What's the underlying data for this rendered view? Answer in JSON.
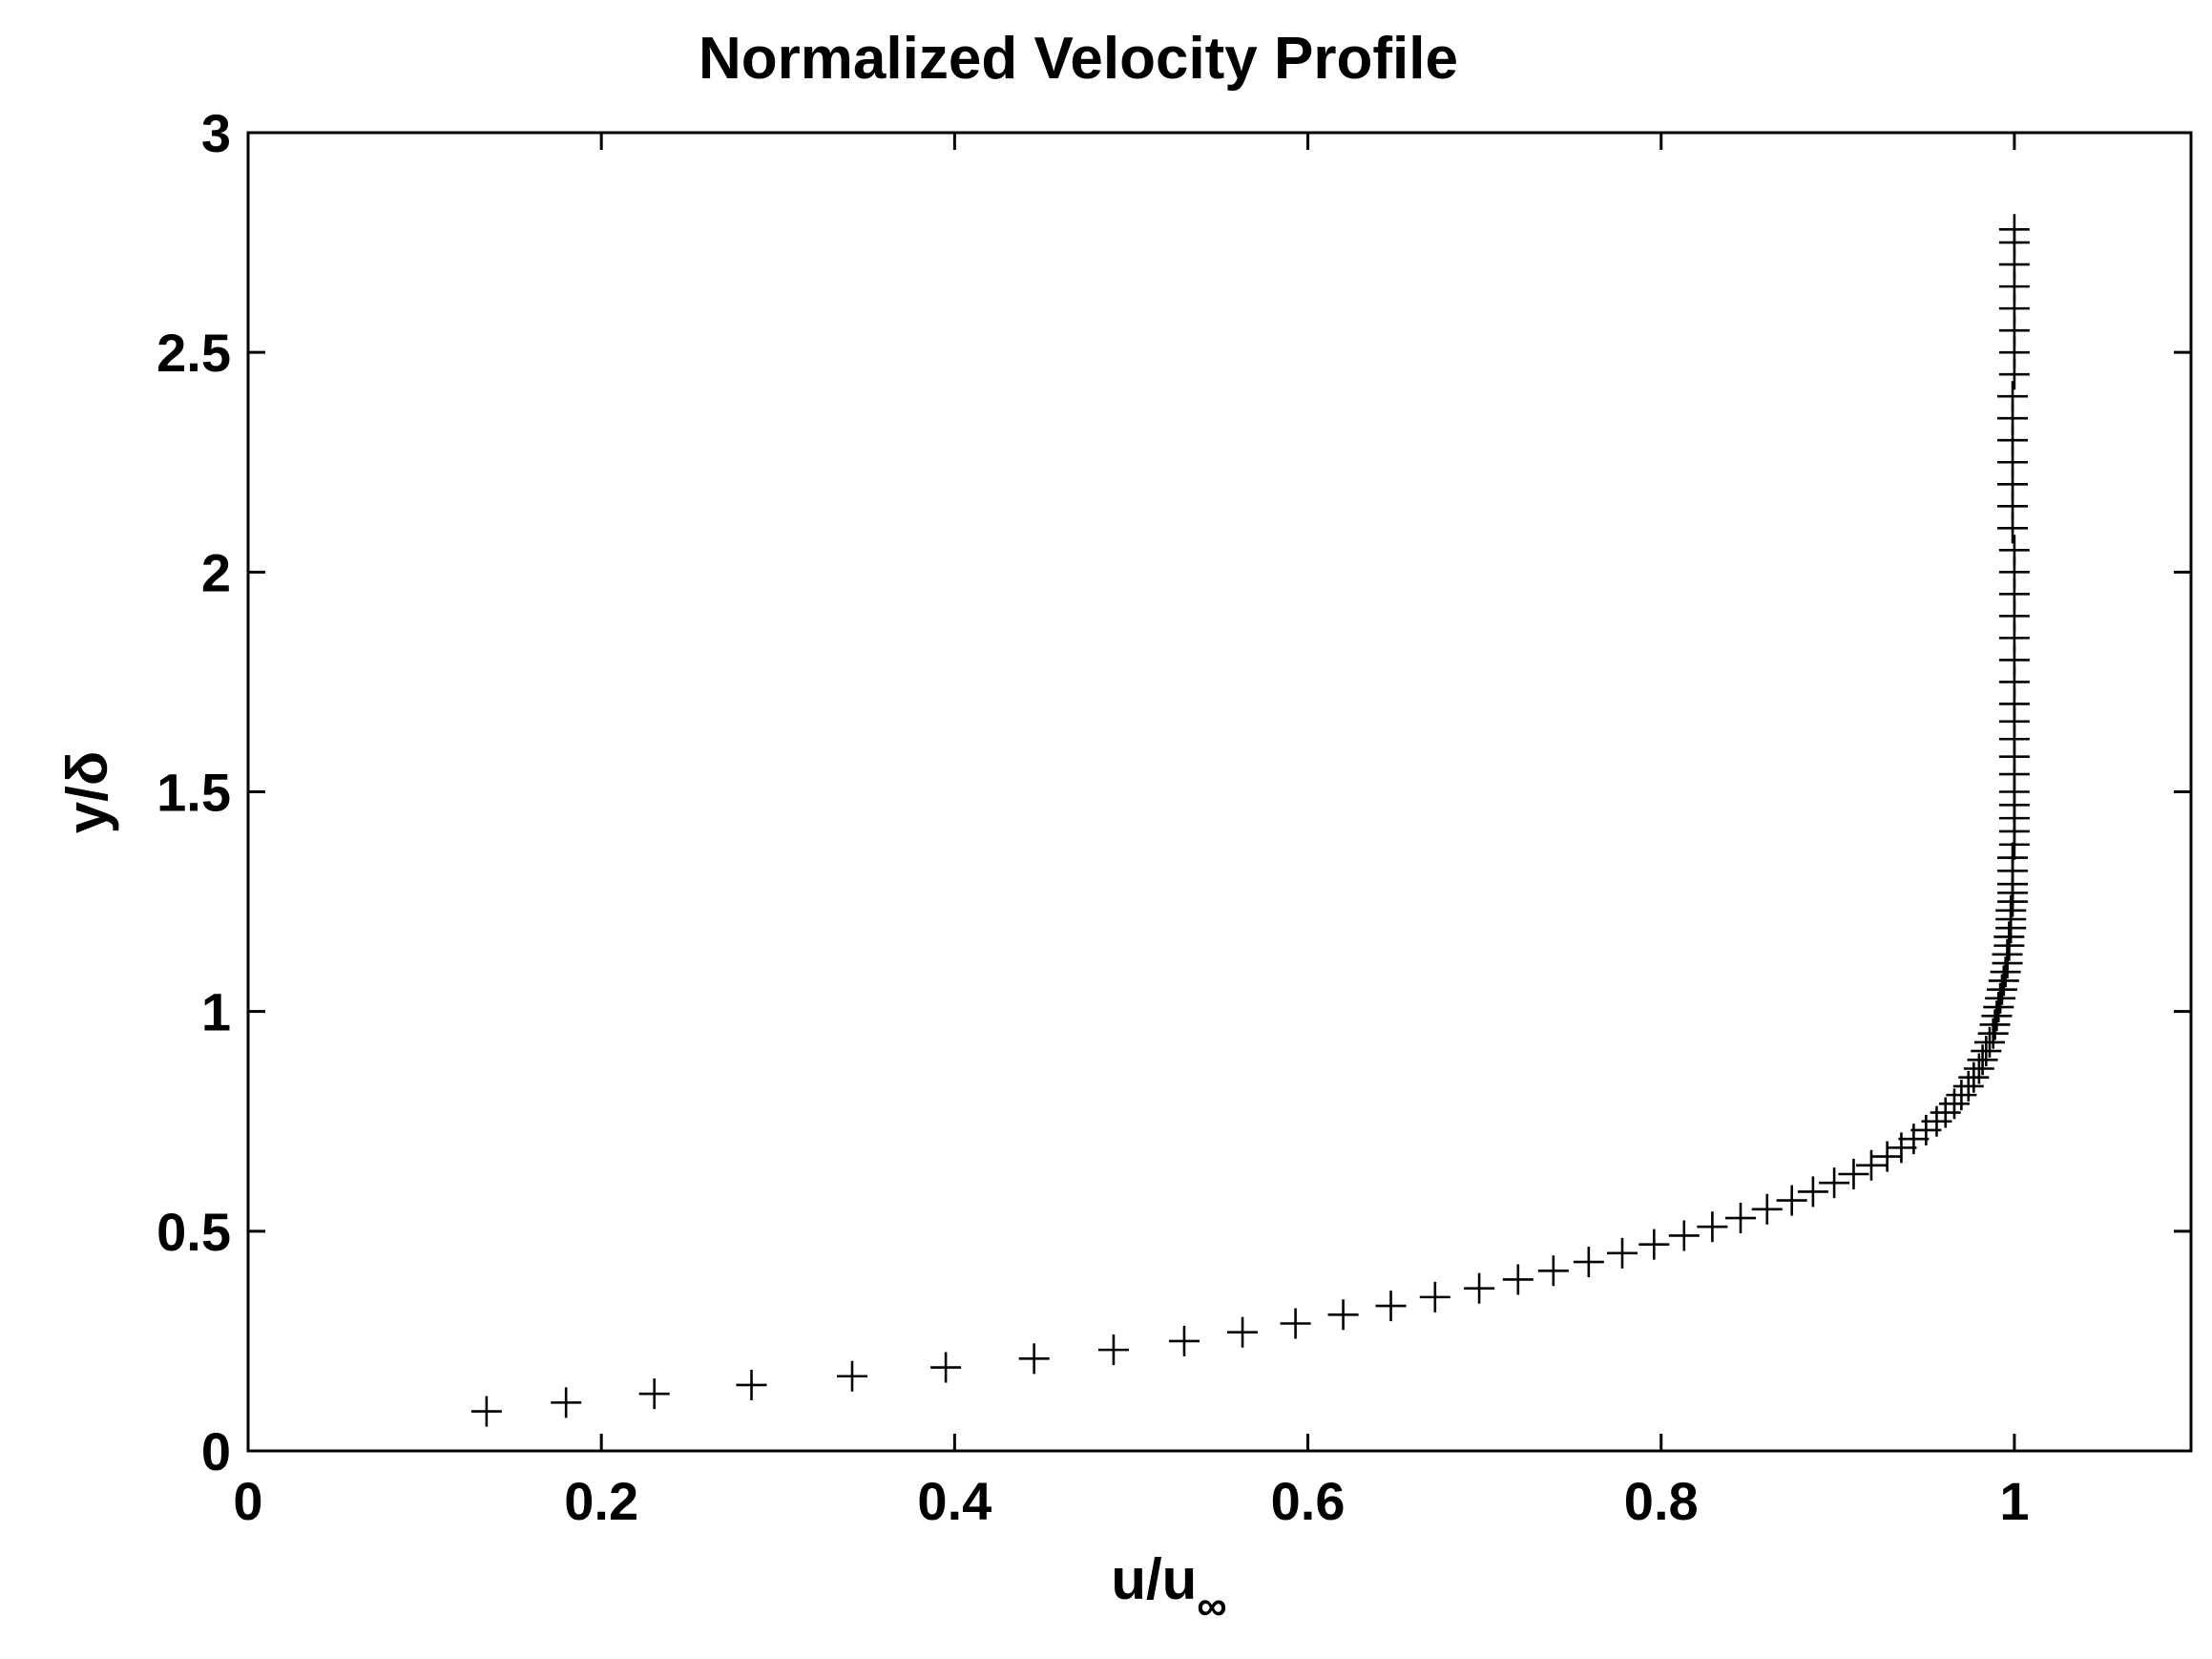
{
  "chart_data": {
    "type": "scatter",
    "title": "Normalized Velocity Profile",
    "xlabel": "u/u",
    "xlabel_subscript": "∞",
    "ylabel": "y/δ",
    "xlim": [
      0,
      1.1
    ],
    "ylim": [
      0,
      3
    ],
    "xticks": [
      0,
      0.2,
      0.4,
      0.6,
      0.8,
      1
    ],
    "xtick_labels": [
      "0",
      "0.2",
      "0.4",
      "0.6",
      "0.8",
      "1"
    ],
    "yticks": [
      0,
      0.5,
      1,
      1.5,
      2,
      2.5,
      3
    ],
    "ytick_labels": [
      "0",
      "0.5",
      "1",
      "1.5",
      "2",
      "2.5",
      "3"
    ],
    "grid": false,
    "marker": "+",
    "color": "#000000",
    "series": [
      {
        "x": [
          0.135,
          0.18,
          0.23,
          0.285,
          0.342,
          0.395,
          0.445,
          0.49,
          0.53,
          0.563,
          0.593,
          0.62,
          0.647,
          0.672,
          0.697,
          0.719,
          0.739,
          0.759,
          0.778,
          0.796,
          0.813,
          0.829,
          0.845,
          0.86,
          0.874,
          0.886,
          0.898,
          0.909,
          0.919,
          0.928,
          0.936,
          0.943,
          0.95,
          0.956,
          0.961,
          0.966,
          0.97,
          0.974,
          0.977,
          0.98,
          0.982,
          0.984,
          0.986,
          0.988,
          0.989,
          0.99,
          0.991,
          0.992,
          0.993,
          0.994,
          0.995,
          0.996,
          0.996,
          0.997,
          0.997,
          0.998,
          0.998,
          0.998,
          0.999,
          0.999,
          0.999,
          0.999,
          0.999,
          1.0,
          1.0,
          1.0,
          1.0,
          1.0,
          1.0,
          1.0,
          1.0,
          1.0,
          1.0,
          1.0,
          1.0,
          1.0,
          1.0,
          1.0,
          1.0,
          1.0,
          0.999,
          0.999,
          0.999,
          0.999,
          0.999,
          0.999,
          0.999,
          1.0,
          1.0,
          1.0,
          1.0,
          1.0,
          1.0,
          1.0,
          1.0
        ],
        "y": [
          0.09,
          0.11,
          0.13,
          0.15,
          0.17,
          0.19,
          0.21,
          0.23,
          0.25,
          0.27,
          0.29,
          0.31,
          0.33,
          0.35,
          0.37,
          0.39,
          0.41,
          0.43,
          0.45,
          0.47,
          0.49,
          0.51,
          0.53,
          0.55,
          0.57,
          0.59,
          0.61,
          0.63,
          0.65,
          0.67,
          0.69,
          0.71,
          0.73,
          0.75,
          0.77,
          0.79,
          0.81,
          0.83,
          0.85,
          0.87,
          0.89,
          0.91,
          0.93,
          0.95,
          0.97,
          0.99,
          1.01,
          1.03,
          1.05,
          1.07,
          1.09,
          1.11,
          1.13,
          1.15,
          1.17,
          1.19,
          1.21,
          1.23,
          1.25,
          1.27,
          1.29,
          1.32,
          1.35,
          1.38,
          1.41,
          1.44,
          1.47,
          1.5,
          1.54,
          1.58,
          1.62,
          1.66,
          1.7,
          1.75,
          1.8,
          1.85,
          1.9,
          1.95,
          2.0,
          2.05,
          2.1,
          2.15,
          2.2,
          2.25,
          2.3,
          2.35,
          2.4,
          2.45,
          2.5,
          2.55,
          2.6,
          2.65,
          2.7,
          2.75,
          2.78
        ]
      }
    ]
  }
}
